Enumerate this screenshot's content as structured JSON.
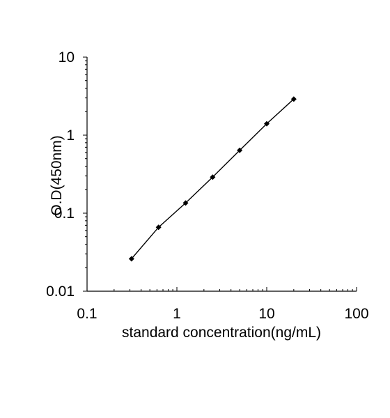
{
  "chart_data": {
    "type": "line",
    "title": "",
    "xlabel": "standard concentration(ng/mL)",
    "ylabel": "O.D(450nm)",
    "x_scale": "log",
    "y_scale": "log",
    "xlim": [
      0.1,
      100
    ],
    "ylim": [
      0.01,
      10
    ],
    "x_ticks": [
      0.1,
      1,
      10,
      100
    ],
    "x_tick_labels": [
      "0.1",
      "1",
      "10",
      "100"
    ],
    "y_ticks": [
      0.01,
      0.1,
      1,
      10
    ],
    "y_tick_labels": [
      "0.01",
      "0.1",
      "1",
      "10"
    ],
    "grid": false,
    "legend": "none",
    "marker": "diamond",
    "colors": {
      "series": "#000000",
      "axis": "#000000",
      "background": "#ffffff"
    },
    "series": [
      {
        "x": [
          0.3125,
          0.625,
          1.25,
          2.5,
          5,
          10,
          20
        ],
        "y": [
          0.026,
          0.066,
          0.135,
          0.29,
          0.64,
          1.4,
          2.9
        ]
      }
    ]
  }
}
